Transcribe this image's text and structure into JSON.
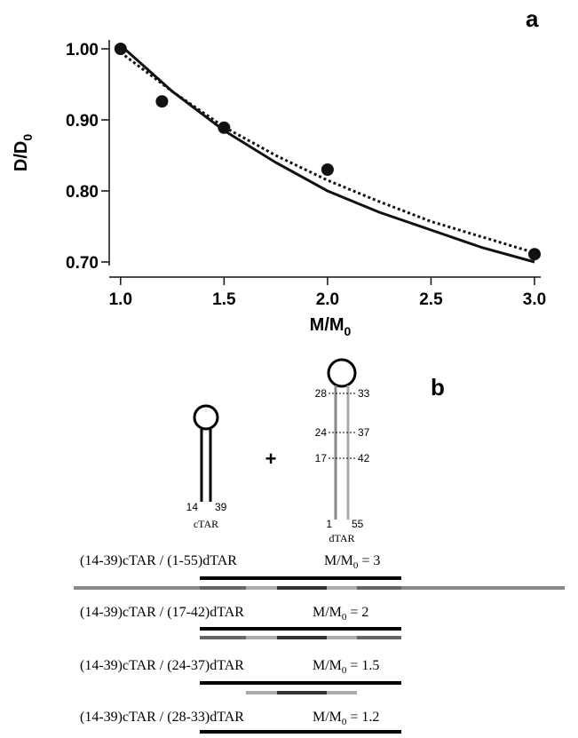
{
  "chart_data": {
    "type": "scatter",
    "panel_label": "a",
    "xlabel": {
      "main": "M/M",
      "sub": "0"
    },
    "ylabel": {
      "main": "D/D",
      "sub": "0"
    },
    "xlim": [
      0.945,
      3.03
    ],
    "ylim": [
      0.695,
      1.0125
    ],
    "xticks": [
      {
        "value": 1,
        "label": "1.0"
      },
      {
        "value": 1.5,
        "label": "1.5"
      },
      {
        "value": 2,
        "label": "2.0"
      },
      {
        "value": 2.5,
        "label": "2.5"
      },
      {
        "value": 3,
        "label": "3.0"
      }
    ],
    "yticks": [
      {
        "value": 0.7,
        "label": "0.70"
      },
      {
        "value": 0.8,
        "label": "0.80"
      },
      {
        "value": 0.9,
        "label": "0.90"
      },
      {
        "value": 1,
        "label": "1.00"
      }
    ],
    "points": {
      "color": "#111111",
      "x": [
        1.0,
        1.2,
        1.5,
        2.0,
        3.0
      ],
      "values": [
        1.0,
        0.926,
        0.889,
        0.83,
        0.711
      ]
    },
    "series": [
      {
        "color": "#111111",
        "dash": false,
        "x": [
          1,
          1.25,
          1.5,
          1.75,
          2,
          2.25,
          2.5,
          2.75,
          3
        ],
        "values": [
          1.005,
          0.94,
          0.885,
          0.84,
          0.8,
          0.77,
          0.745,
          0.72,
          0.7
        ]
      },
      {
        "color": "#111111",
        "dash": true,
        "x": [
          1,
          1.25,
          1.5,
          1.75,
          2,
          2.25,
          2.5,
          2.75,
          3
        ],
        "values": [
          0.995,
          0.94,
          0.89,
          0.85,
          0.815,
          0.785,
          0.757,
          0.735,
          0.713
        ]
      }
    ]
  },
  "diagram": {
    "panel_label": "b",
    "plus": "+",
    "ctar": {
      "left": "14",
      "right": "39",
      "name": "cTAR"
    },
    "dtar": {
      "pairs": [
        [
          "28",
          "33"
        ],
        [
          "24",
          "37"
        ],
        [
          "17",
          "42"
        ]
      ],
      "left": "1",
      "right": "55",
      "name": "dTAR"
    },
    "rows": [
      {
        "label": "(14-39)cTAR / (1-55)dTAR",
        "ratio": "M/M",
        "sub": "0",
        "value": " = 3"
      },
      {
        "label": "(14-39)cTAR / (17-42)dTAR",
        "ratio": "M/M",
        "sub": "0",
        "value": " = 2"
      },
      {
        "label": "(14-39)cTAR / (24-37)dTAR",
        "ratio": "M/M",
        "sub": "0",
        "value": " = 1.5"
      },
      {
        "label": "(14-39)cTAR / (28-33)dTAR",
        "ratio": "M/M",
        "sub": "0",
        "value": " = 1.2"
      }
    ]
  }
}
